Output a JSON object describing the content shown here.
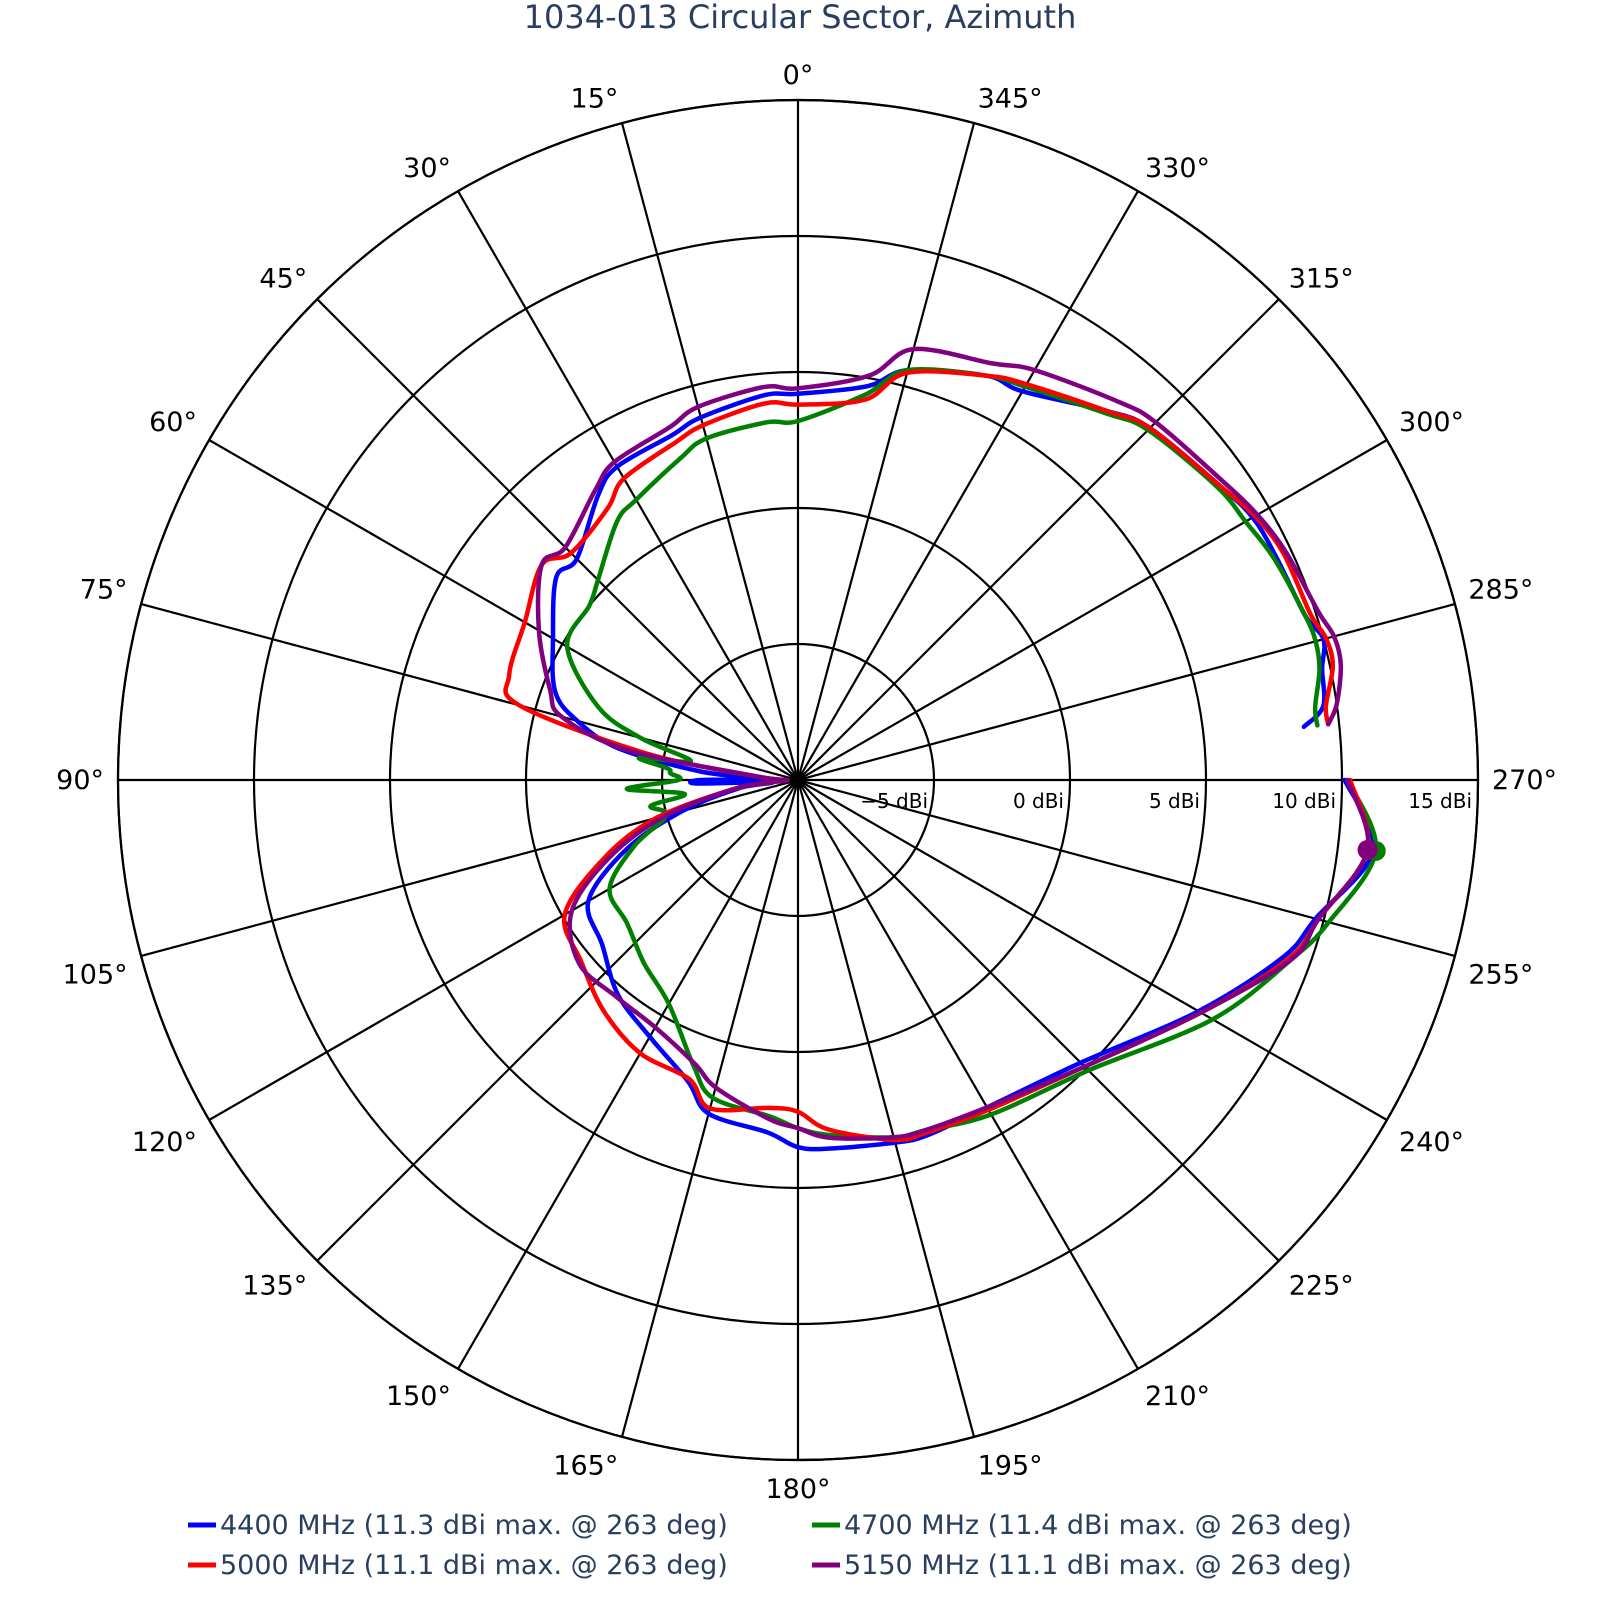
{
  "chart_data": {
    "type": "polar-line",
    "title": "1034-013 Circular Sector, Azimuth",
    "angular_axis": {
      "direction": "counterclockwise",
      "rotation_zero": "top",
      "tick_step_deg": 15,
      "tick_labels": [
        "0°",
        "15°",
        "30°",
        "45°",
        "60°",
        "75°",
        "90°",
        "105°",
        "120°",
        "135°",
        "150°",
        "165°",
        "180°",
        "195°",
        "210°",
        "225°",
        "240°",
        "255°",
        "270°",
        "285°",
        "300°",
        "315°",
        "330°",
        "345°"
      ]
    },
    "radial_axis": {
      "unit": "dBi",
      "range": [
        -10,
        15
      ],
      "tick_values": [
        -5,
        0,
        5,
        10,
        15
      ],
      "tick_labels": [
        "−5 dBi",
        "0 dBi",
        "5 dBi",
        "10 dBi",
        "15 dBi"
      ],
      "label_angle_deg": 270
    },
    "legend": {
      "position": "bottom",
      "orientation": "horizontal"
    },
    "series": [
      {
        "name": "4400 MHz (11.3 dBi max. @ 263 deg)",
        "color": "#0000ff",
        "max": {
          "angle": 263,
          "value": 11.3
        },
        "theta": [
          270,
          263,
          255,
          250,
          240,
          225,
          210,
          200,
          195,
          185,
          180,
          175,
          165,
          160,
          150,
          140,
          130,
          120,
          112,
          105,
          98,
          95,
          92,
          90,
          88,
          85,
          80,
          75,
          70,
          60,
          50,
          45,
          35,
          30,
          20,
          15,
          5,
          0,
          350,
          345,
          335,
          330,
          320,
          315,
          305,
          300,
          295,
          288,
          285,
          282,
          278,
          276
        ],
        "r": [
          10.1,
          11.3,
          9.7,
          9.0,
          7.0,
          4.7,
          3.9,
          3.9,
          3.8,
          3.6,
          3.5,
          3.0,
          2.7,
          1.8,
          0.9,
          0.3,
          -0.6,
          -1.1,
          -3.2,
          -5.6,
          -7.8,
          -9.0,
          -6.3,
          -6.4,
          -8.6,
          -6.4,
          -3.3,
          -1.6,
          -0.5,
          0.4,
          1.6,
          1.5,
          2.8,
          3.3,
          3.5,
          3.8,
          4.2,
          4.2,
          4.7,
          5.6,
          6.4,
          6.5,
          7.7,
          8.3,
          8.9,
          9.3,
          9.4,
          9.6,
          10.0,
          9.7,
          9.5,
          8.7
        ]
      },
      {
        "name": "4700 MHz (11.4 dBi max. @ 263 deg)",
        "color": "#008000",
        "max": {
          "angle": 263,
          "value": 11.4
        },
        "theta": [
          270,
          263,
          255,
          250,
          240,
          225,
          210,
          200,
          195,
          185,
          180,
          175,
          165,
          160,
          150,
          140,
          130,
          120,
          112,
          105,
          100,
          97,
          93,
          90,
          87,
          85,
          82,
          80,
          75,
          70,
          60,
          50,
          45,
          35,
          30,
          20,
          15,
          5,
          0,
          350,
          345,
          335,
          330,
          320,
          315,
          305,
          300,
          295,
          288,
          285,
          282,
          278,
          276
        ],
        "r": [
          10.2,
          11.4,
          10.2,
          9.3,
          7.6,
          5.1,
          4.2,
          3.7,
          3.6,
          3.1,
          2.8,
          2.4,
          2.1,
          1.2,
          -0.5,
          -1.2,
          -1.8,
          -2.0,
          -3.5,
          -5.0,
          -4.5,
          -5.8,
          -3.7,
          -5.6,
          -5.3,
          -5.2,
          -4.1,
          -6.0,
          -4.0,
          -2.2,
          -0.2,
          0.0,
          0.4,
          1.6,
          1.9,
          2.6,
          3.0,
          3.2,
          3.2,
          4.4,
          5.6,
          6.4,
          6.7,
          7.6,
          8.2,
          8.8,
          9.0,
          9.3,
          9.6,
          9.7,
          9.6,
          9.2,
          9.2
        ]
      },
      {
        "name": "5000 MHz (11.1 dBi max. @ 263 deg)",
        "color": "#ff0000",
        "max": {
          "angle": 263,
          "value": 11.1
        },
        "theta": [
          270,
          263,
          255,
          250,
          240,
          225,
          210,
          200,
          195,
          185,
          180,
          175,
          165,
          160,
          150,
          140,
          130,
          120,
          112,
          105,
          98,
          95,
          90,
          85,
          80,
          75,
          70,
          60,
          50,
          45,
          35,
          30,
          20,
          15,
          5,
          0,
          350,
          345,
          335,
          330,
          320,
          315,
          305,
          300,
          295,
          288,
          285,
          282,
          278,
          276
        ],
        "r": [
          10.3,
          11.1,
          9.8,
          9.2,
          7.1,
          4.9,
          4.0,
          3.8,
          3.7,
          2.9,
          2.2,
          2.1,
          2.5,
          1.7,
          1.6,
          1.1,
          0.4,
          -0.1,
          -2.3,
          -4.6,
          -7.6,
          -9.0,
          -9.5,
          -8.4,
          -4.3,
          0.6,
          1.3,
          1.6,
          2.3,
          1.8,
          2.2,
          2.8,
          3.2,
          3.5,
          3.9,
          3.8,
          4.2,
          5.5,
          6.4,
          6.8,
          7.7,
          8.3,
          8.9,
          9.4,
          9.7,
          9.8,
          10.1,
          10.1,
          9.6,
          9.6
        ]
      },
      {
        "name": "5150 MHz (11.1 dBi max. @ 263 deg)",
        "color": "#800080",
        "max": {
          "angle": 263,
          "value": 11.1
        },
        "theta": [
          270,
          263,
          255,
          250,
          240,
          225,
          210,
          200,
          195,
          185,
          180,
          175,
          165,
          160,
          150,
          140,
          130,
          120,
          112,
          105,
          98,
          95,
          90,
          85,
          80,
          75,
          70,
          60,
          50,
          45,
          35,
          30,
          20,
          15,
          5,
          0,
          350,
          345,
          335,
          330,
          320,
          315,
          305,
          300,
          295,
          288,
          285,
          282,
          278,
          276
        ],
        "r": [
          10.2,
          11.1,
          9.8,
          9.3,
          7.1,
          4.9,
          3.9,
          3.7,
          3.6,
          3.2,
          2.8,
          2.5,
          1.7,
          1.1,
          0.5,
          0.4,
          0.5,
          -0.4,
          -2.6,
          -5.0,
          -7.6,
          -9.0,
          -9.6,
          -8.5,
          -3.6,
          -1.0,
          -0.3,
          1.0,
          2.3,
          2.1,
          3.0,
          3.5,
          3.8,
          4.2,
          4.5,
          4.4,
          5.1,
          6.4,
          6.9,
          7.4,
          8.2,
          8.6,
          9.1,
          9.5,
          9.8,
          10.1,
          10.4,
          10.4,
          10.0,
          9.6
        ]
      }
    ]
  }
}
